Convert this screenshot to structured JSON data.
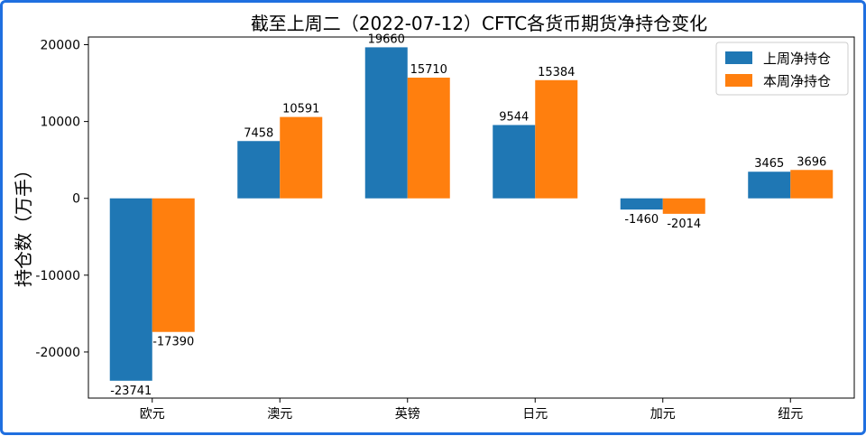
{
  "chart_data": {
    "type": "bar",
    "title": "截至上周二（2022-07-12）CFTC各货币期货净持仓变化",
    "xlabel": "",
    "ylabel": "持仓数（万手）",
    "categories": [
      "欧元",
      "澳元",
      "英镑",
      "日元",
      "加元",
      "纽元"
    ],
    "series": [
      {
        "name": "上周净持仓",
        "color": "#1f77b4",
        "values": [
          -23741,
          7458,
          19660,
          9544,
          -1460,
          3465
        ]
      },
      {
        "name": "本周净持仓",
        "color": "#ff7f0e",
        "values": [
          -17390,
          10591,
          15710,
          15384,
          -2014,
          3696
        ]
      }
    ],
    "ylim": [
      -26000,
      21000
    ],
    "yticks": [
      -20000,
      -10000,
      0,
      10000,
      20000
    ],
    "grid": false,
    "legend": "top-right"
  }
}
